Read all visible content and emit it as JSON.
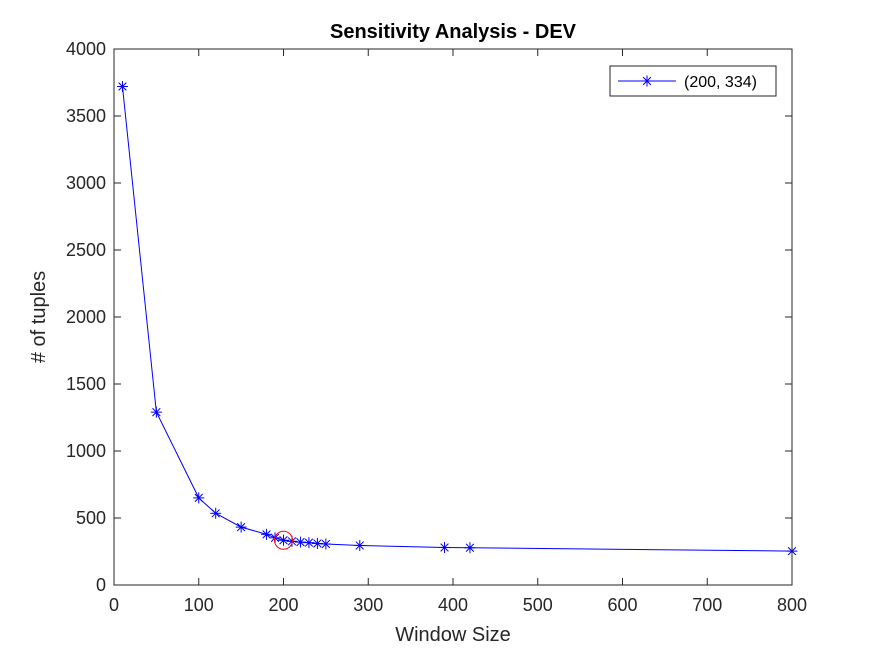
{
  "chart_data": {
    "type": "line",
    "title": "Sensitivity Analysis - DEV",
    "xlabel": "Window Size",
    "ylabel": "# of tuples",
    "xlim": [
      0,
      800
    ],
    "ylim": [
      0,
      4000
    ],
    "xticks": [
      "0",
      "100",
      "200",
      "300",
      "400",
      "500",
      "600",
      "700",
      "800"
    ],
    "yticks": [
      "0",
      "500",
      "1000",
      "1500",
      "2000",
      "2500",
      "3000",
      "3500",
      "4000"
    ],
    "grid": false,
    "legend_position": "top-right",
    "series": [
      {
        "name": "(200, 334)",
        "color": "#0000ff",
        "marker": "asterisk",
        "points": [
          {
            "x": 10,
            "y": 3720
          },
          {
            "x": 50,
            "y": 1290
          },
          {
            "x": 100,
            "y": 650
          },
          {
            "x": 120,
            "y": 535
          },
          {
            "x": 150,
            "y": 432
          },
          {
            "x": 180,
            "y": 378
          },
          {
            "x": 190,
            "y": 352
          },
          {
            "x": 200,
            "y": 334
          },
          {
            "x": 210,
            "y": 326
          },
          {
            "x": 220,
            "y": 320
          },
          {
            "x": 230,
            "y": 316
          },
          {
            "x": 240,
            "y": 310
          },
          {
            "x": 250,
            "y": 306
          },
          {
            "x": 290,
            "y": 295
          },
          {
            "x": 390,
            "y": 280
          },
          {
            "x": 420,
            "y": 278
          },
          {
            "x": 800,
            "y": 253
          }
        ]
      }
    ],
    "highlight": {
      "x": 200,
      "y": 334,
      "color": "#ff0000"
    }
  }
}
